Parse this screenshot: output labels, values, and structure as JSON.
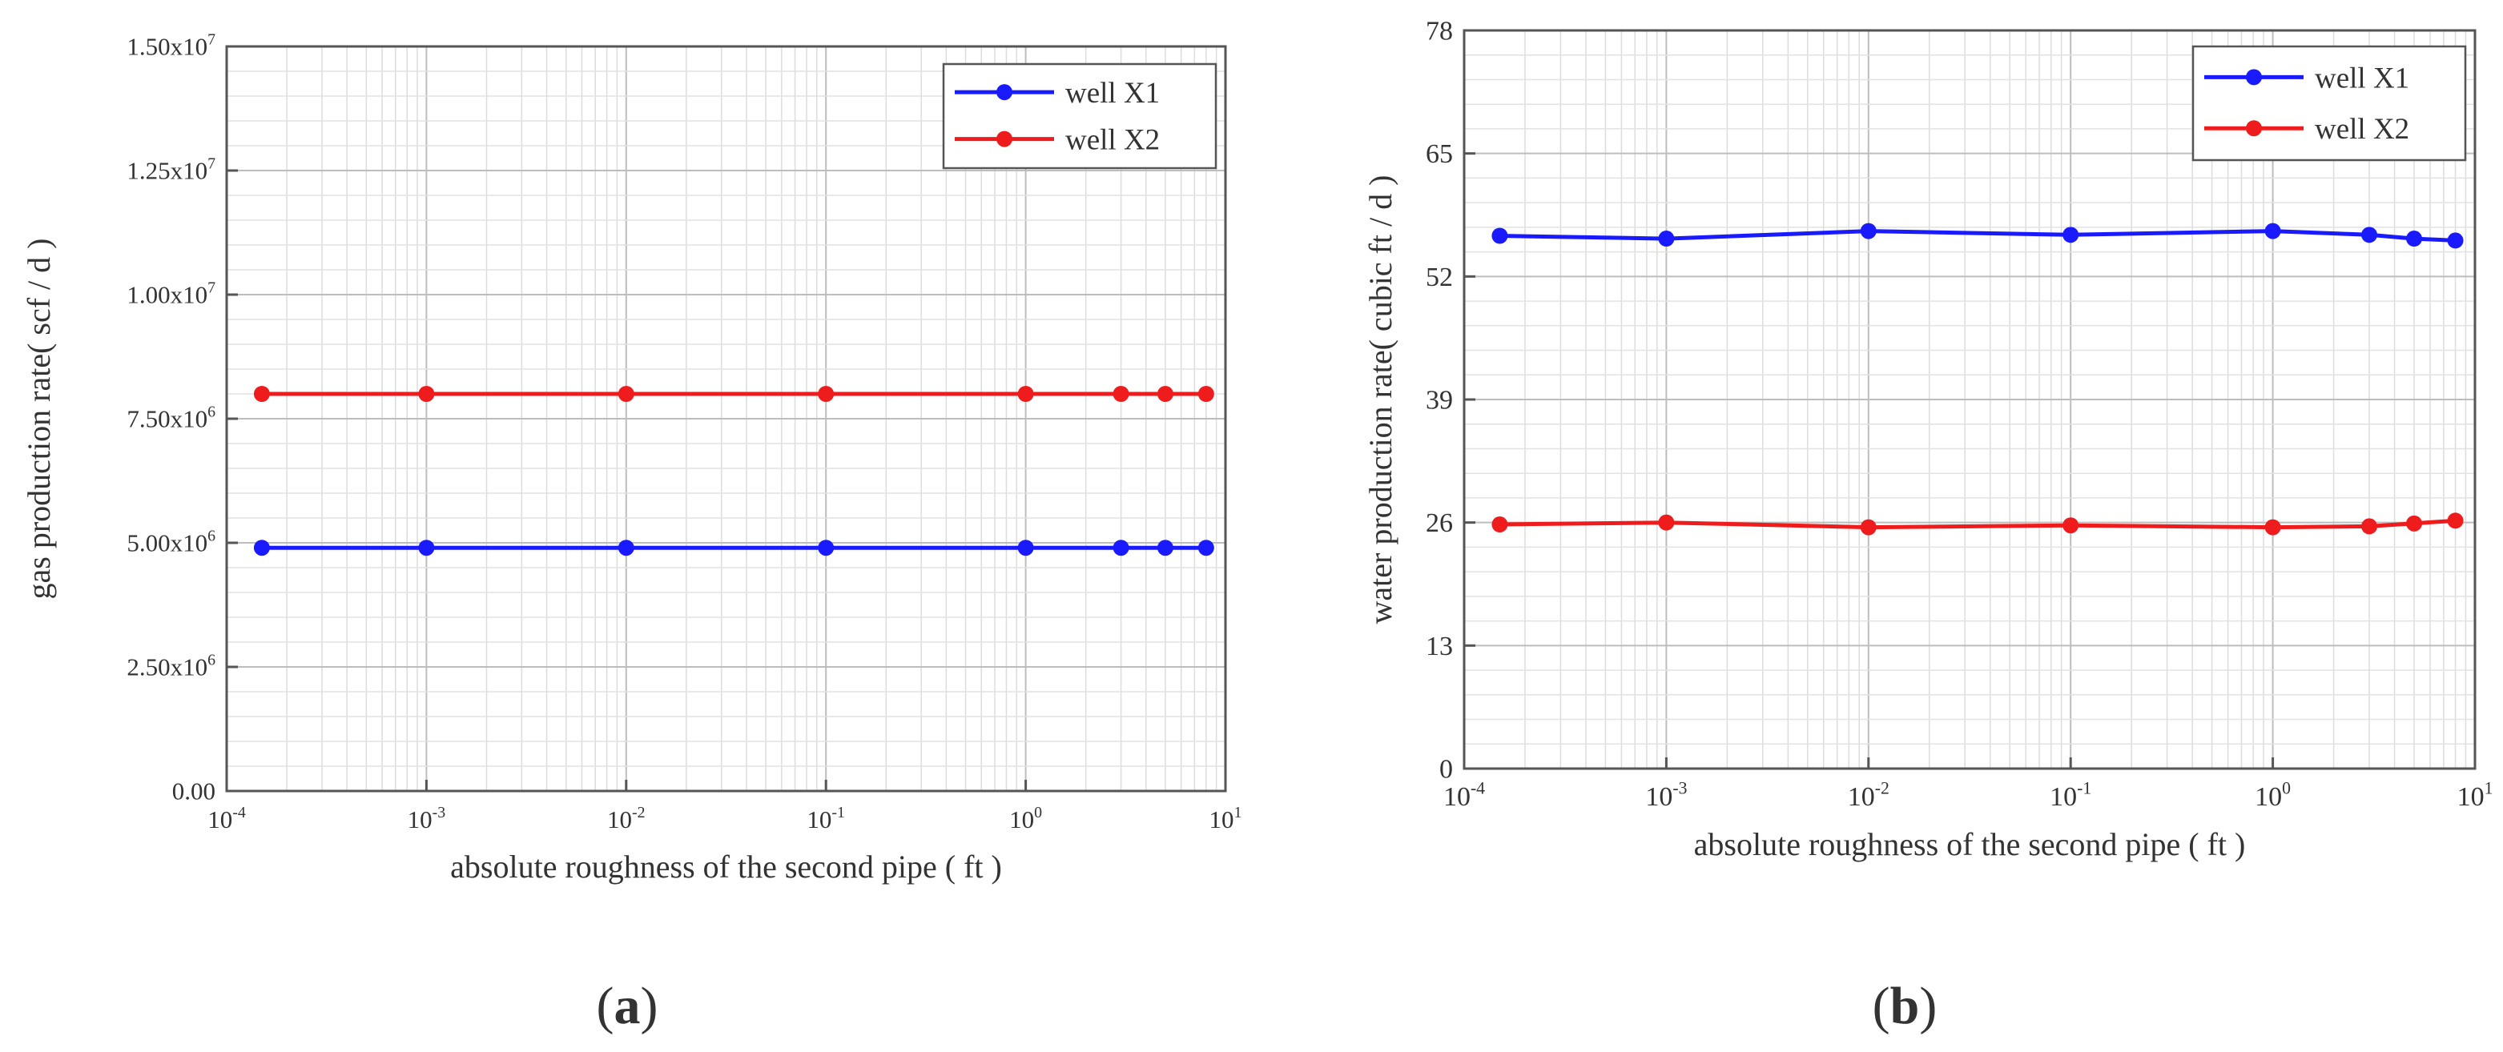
{
  "chart_data": [
    {
      "panel_label": "a",
      "type": "line",
      "x_scale": "log",
      "xlim": [
        0.0001,
        10
      ],
      "ylim": [
        0,
        15000000
      ],
      "xlabel": "absolute roughness of the second pipe ( ft )",
      "ylabel": "gas production rate( scf / d )",
      "x_ticks": [
        {
          "base": "10",
          "exp": "-4"
        },
        {
          "base": "10",
          "exp": "-3"
        },
        {
          "base": "10",
          "exp": "-2"
        },
        {
          "base": "10",
          "exp": "-1"
        },
        {
          "base": "10",
          "exp": "0"
        },
        {
          "base": "10",
          "exp": "1"
        }
      ],
      "y_ticks": [
        {
          "mant": "0.00",
          "exp": ""
        },
        {
          "mant": "2.50x10",
          "exp": "6"
        },
        {
          "mant": "5.00x10",
          "exp": "6"
        },
        {
          "mant": "7.50x10",
          "exp": "6"
        },
        {
          "mant": "1.00x10",
          "exp": "7"
        },
        {
          "mant": "1.25x10",
          "exp": "7"
        },
        {
          "mant": "1.50x10",
          "exp": "7"
        }
      ],
      "x": [
        0.00015,
        0.001,
        0.01,
        0.1,
        1,
        3,
        5,
        8
      ],
      "series": [
        {
          "name": "well X1",
          "color": "#1a1aff",
          "values": [
            4900000,
            4900000,
            4900000,
            4900000,
            4900000,
            4900000,
            4900000,
            4900000
          ]
        },
        {
          "name": "well X2",
          "color": "#ee1c1c",
          "values": [
            8000000,
            8000000,
            8000000,
            8000000,
            8000000,
            8000000,
            8000000,
            8000000
          ]
        }
      ],
      "legend_position": "top-right",
      "grid": true
    },
    {
      "panel_label": "b",
      "type": "line",
      "x_scale": "log",
      "xlim": [
        0.0001,
        10
      ],
      "ylim": [
        0,
        78
      ],
      "xlabel": "absolute roughness of the second pipe ( ft )",
      "ylabel": "water production rate( cubic ft / d )",
      "x_ticks": [
        {
          "base": "10",
          "exp": "-4"
        },
        {
          "base": "10",
          "exp": "-3"
        },
        {
          "base": "10",
          "exp": "-2"
        },
        {
          "base": "10",
          "exp": "-1"
        },
        {
          "base": "10",
          "exp": "0"
        },
        {
          "base": "10",
          "exp": "1"
        }
      ],
      "y_ticks": [
        {
          "mant": "0",
          "exp": ""
        },
        {
          "mant": "13",
          "exp": ""
        },
        {
          "mant": "26",
          "exp": ""
        },
        {
          "mant": "39",
          "exp": ""
        },
        {
          "mant": "52",
          "exp": ""
        },
        {
          "mant": "65",
          "exp": ""
        },
        {
          "mant": "78",
          "exp": ""
        }
      ],
      "x": [
        0.00015,
        0.001,
        0.01,
        0.1,
        1,
        3,
        5,
        8
      ],
      "series": [
        {
          "name": "well X1",
          "color": "#1a1aff",
          "values": [
            56.3,
            56.0,
            56.8,
            56.4,
            56.8,
            56.4,
            56.0,
            55.8
          ]
        },
        {
          "name": "well X2",
          "color": "#ee1c1c",
          "values": [
            25.8,
            26.0,
            25.5,
            25.7,
            25.5,
            25.6,
            25.9,
            26.2
          ]
        }
      ],
      "legend_position": "top-right",
      "grid": true
    }
  ]
}
